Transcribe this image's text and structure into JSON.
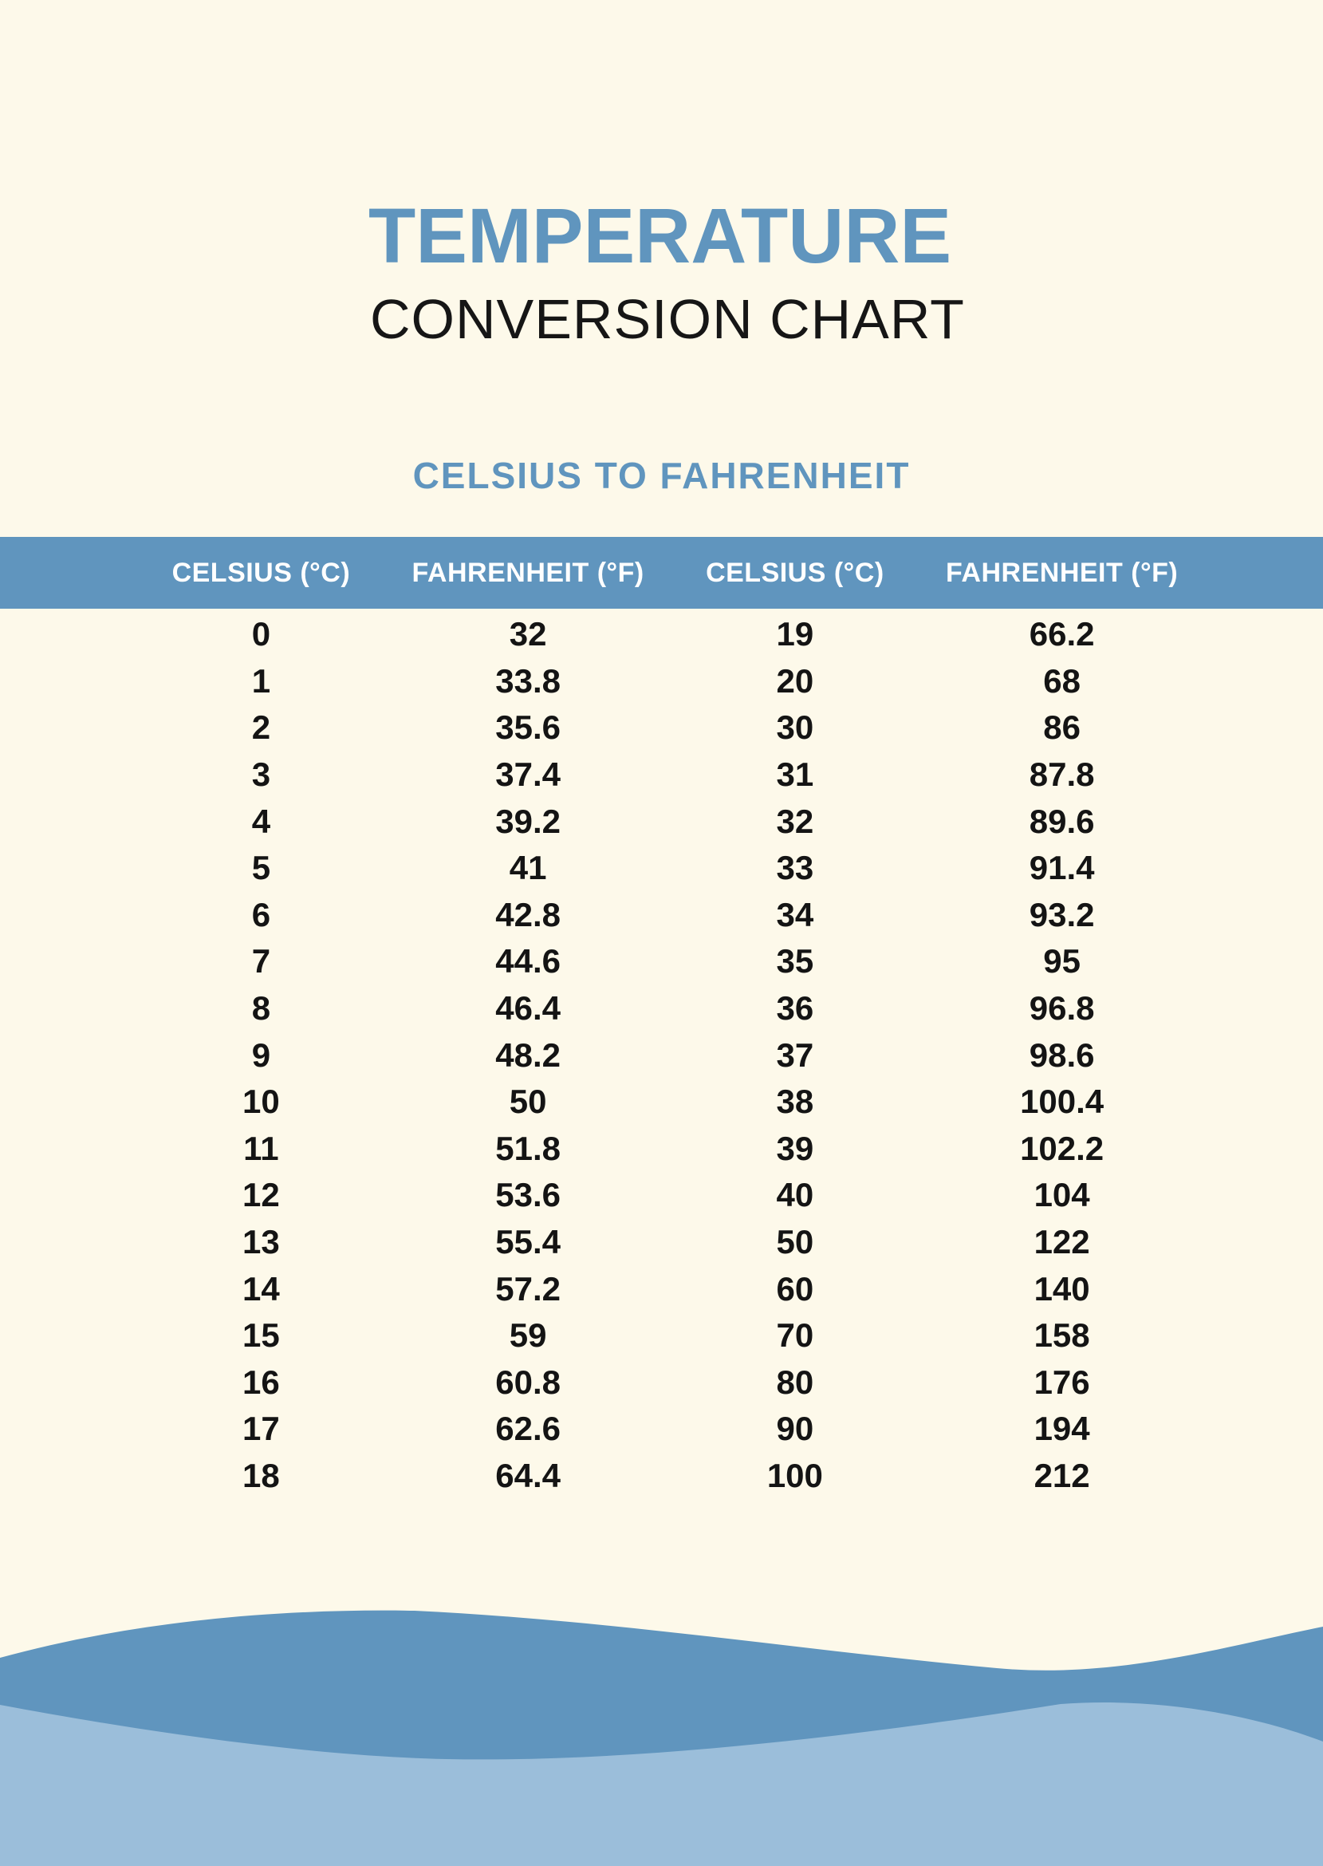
{
  "colors": {
    "background": "#FDF9EA",
    "accent": "#6095BE",
    "wave_light": "#9BBEDA",
    "text_dark": "#161616",
    "header_text": "#FFFFFF"
  },
  "title": {
    "line1": "TEMPERATURE",
    "line2": "CONVERSION CHART"
  },
  "section_heading": "CELSIUS TO FAHRENHEIT",
  "table": {
    "column_headers": [
      "CELSIUS (°C)",
      "FAHRENHEIT (°F)",
      "CELSIUS (°C)",
      "FAHRENHEIT (°F)"
    ],
    "rows": [
      [
        "0",
        "32",
        "19",
        "66.2"
      ],
      [
        "1",
        "33.8",
        "20",
        "68"
      ],
      [
        "2",
        "35.6",
        "30",
        "86"
      ],
      [
        "3",
        "37.4",
        "31",
        "87.8"
      ],
      [
        "4",
        "39.2",
        "32",
        "89.6"
      ],
      [
        "5",
        "41",
        "33",
        "91.4"
      ],
      [
        "6",
        "42.8",
        "34",
        "93.2"
      ],
      [
        "7",
        "44.6",
        "35",
        "95"
      ],
      [
        "8",
        "46.4",
        "36",
        "96.8"
      ],
      [
        "9",
        "48.2",
        "37",
        "98.6"
      ],
      [
        "10",
        "50",
        "38",
        "100.4"
      ],
      [
        "11",
        "51.8",
        "39",
        "102.2"
      ],
      [
        "12",
        "53.6",
        "40",
        "104"
      ],
      [
        "13",
        "55.4",
        "50",
        "122"
      ],
      [
        "14",
        "57.2",
        "60",
        "140"
      ],
      [
        "15",
        "59",
        "70",
        "158"
      ],
      [
        "16",
        "60.8",
        "80",
        "176"
      ],
      [
        "17",
        "62.6",
        "90",
        "194"
      ],
      [
        "18",
        "64.4",
        "100",
        "212"
      ]
    ]
  }
}
